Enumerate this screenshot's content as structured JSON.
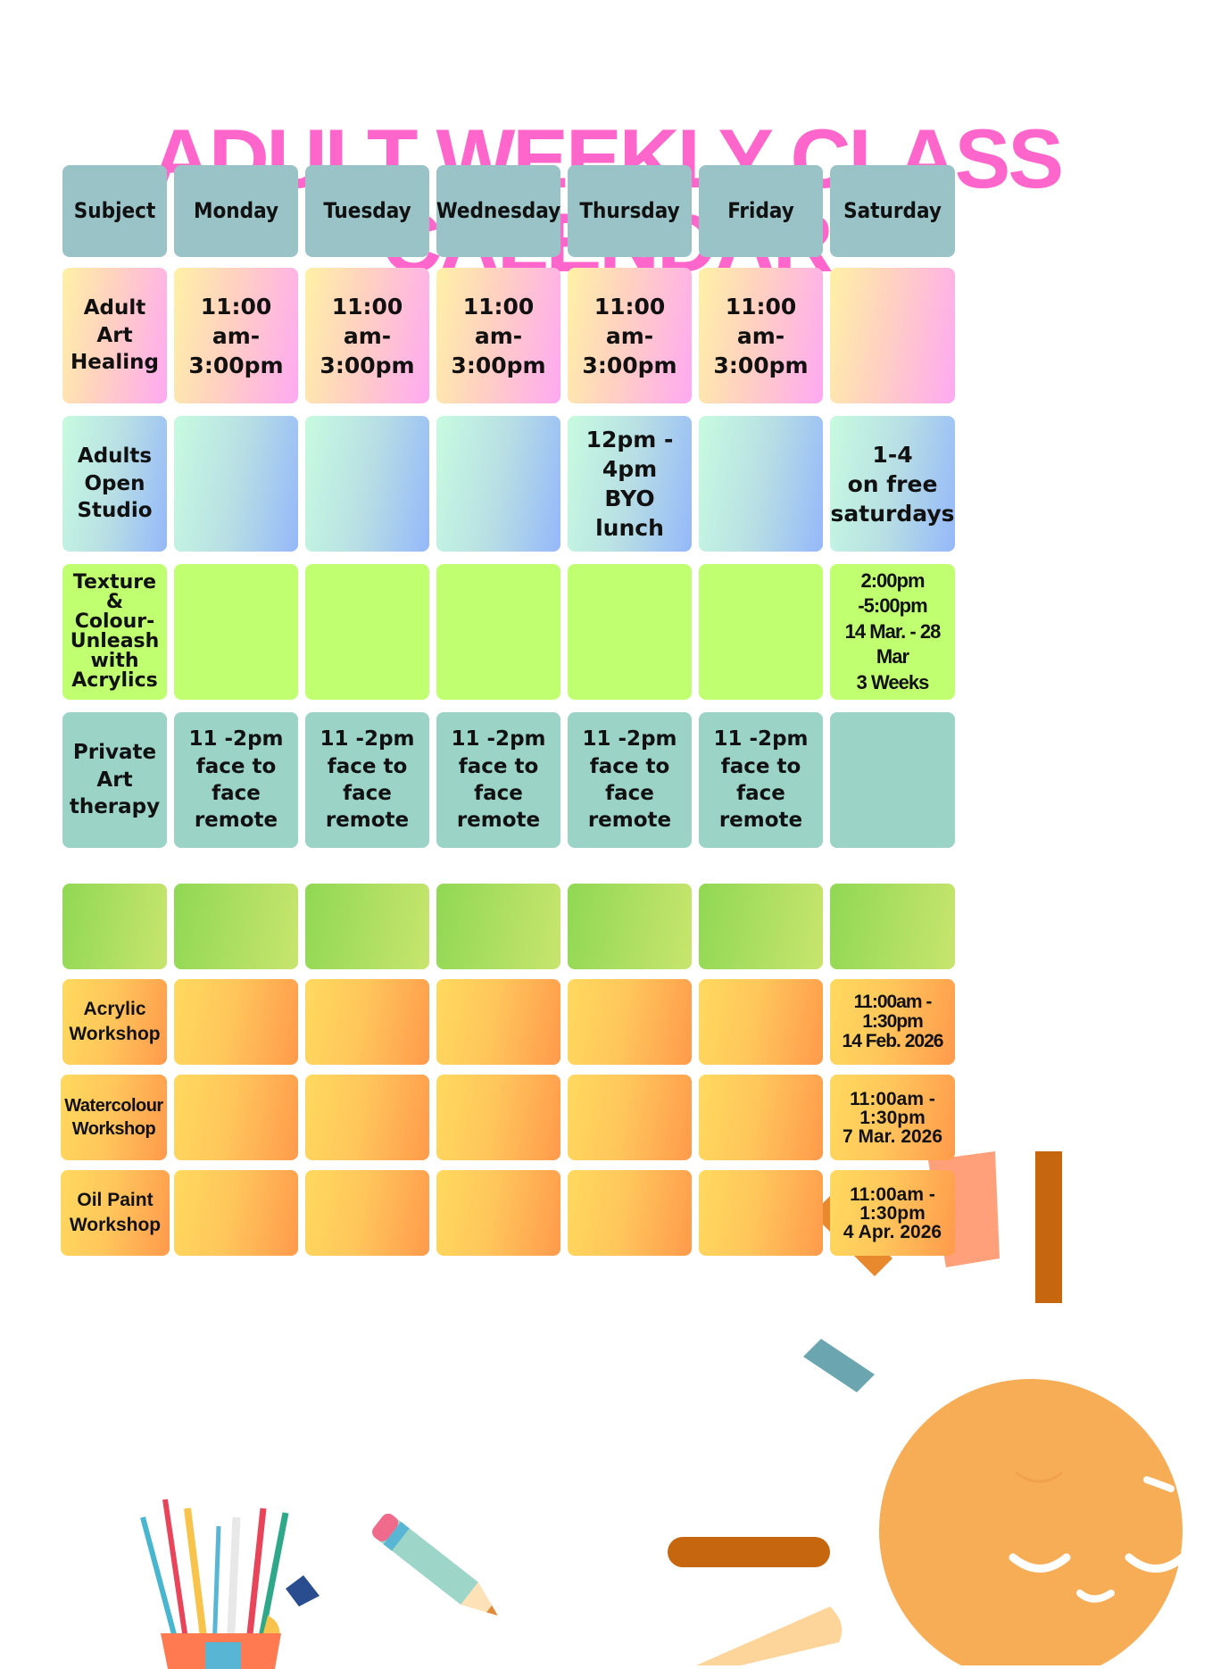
{
  "title": "ADULT WEEKLY CLASS CALENDAR",
  "header": [
    "Subject",
    "Monday",
    "Tuesday",
    "Wednesday",
    "Thursday",
    "Friday",
    "Saturday"
  ],
  "rows": [
    {
      "subject": "Adult Art\nHealing",
      "cells": [
        "11:00 am-\n3:00pm",
        "11:00 am-\n3:00pm",
        "11:00 am-\n3:00pm",
        "11:00 am-\n3:00pm",
        "11:00 am-\n3:00pm",
        ""
      ]
    },
    {
      "subject": "Adults\nOpen\nStudio",
      "cells": [
        "",
        "",
        "",
        "12pm - 4pm\nBYO lunch",
        "",
        "1-4\non free\nsaturdays"
      ]
    },
    {
      "subject": "Texture &\nColour-\nUnleash\nwith\nAcrylics",
      "cells": [
        "",
        "",
        "",
        "",
        "",
        "2:00pm\n-5:00pm\n14 Mar. - 28\nMar\n3 Weeks"
      ]
    },
    {
      "subject": "Private Art\ntherapy",
      "cells": [
        "11 -2pm\nface to face\nremote",
        "11 -2pm\nface to face\nremote",
        "11 -2pm\nface to face\nremote",
        "11 -2pm\nface to face\nremote",
        "11 -2pm\nface to face\nremote",
        ""
      ]
    }
  ],
  "workshops": [
    {
      "subject": "Acrylic\nWorkshop",
      "saturday": "11:00am -\n1:30pm\n14 Feb. 2026"
    },
    {
      "subject": "Watercolour\nWorkshop",
      "saturday": "11:00am -\n1:30pm\n7 Mar. 2026"
    },
    {
      "subject": "Oil Paint\nWorkshop",
      "saturday": "11:00am -\n1:30pm\n4 Apr. 2026"
    }
  ],
  "icons": [
    "paint-brush-cup-icon",
    "pencil-icon",
    "sleeping-sun-icon"
  ]
}
